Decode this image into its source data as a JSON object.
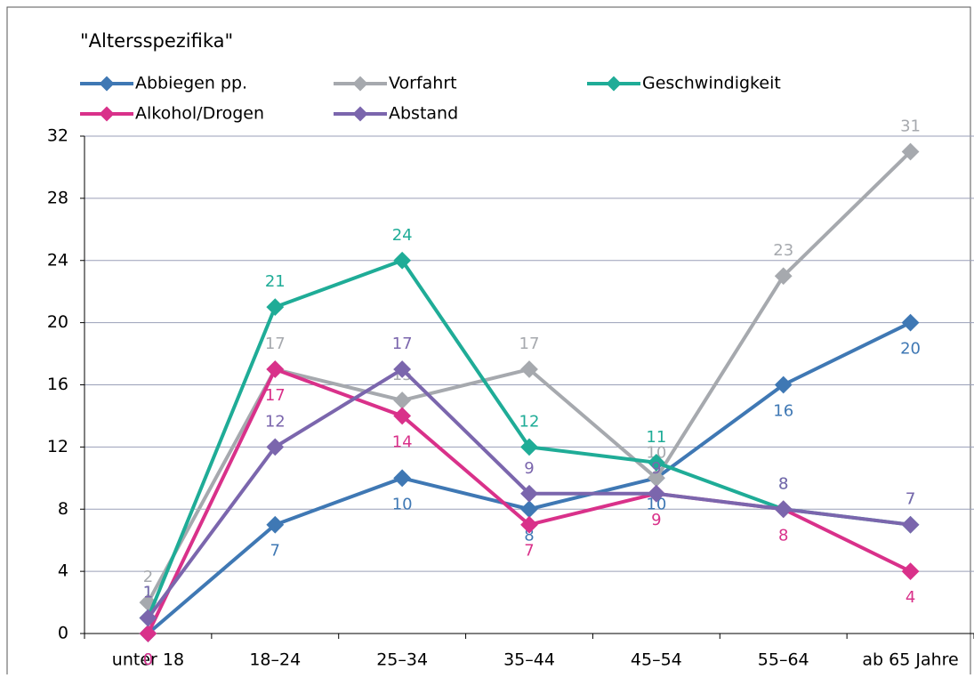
{
  "chart_data": {
    "type": "line",
    "title": "\"Altersspezifika\"",
    "categories": [
      "unter 18",
      "18–24",
      "25–34",
      "35–44",
      "45–54",
      "55–64",
      "ab 65 Jahre"
    ],
    "series": [
      {
        "name": "Abbiegen pp.",
        "color": "#3f78b4",
        "values": [
          0,
          7,
          10,
          8,
          10,
          16,
          20
        ]
      },
      {
        "name": "Vorfahrt",
        "color": "#a6a9ae",
        "values": [
          2,
          17,
          15,
          17,
          10,
          23,
          31
        ]
      },
      {
        "name": "Geschwindigkeit",
        "color": "#1fac97",
        "values": [
          1,
          21,
          24,
          12,
          11,
          8,
          7
        ]
      },
      {
        "name": "Alkohol/Drogen",
        "color": "#d9318a",
        "values": [
          0,
          17,
          14,
          7,
          9,
          8,
          4
        ]
      },
      {
        "name": "Abstand",
        "color": "#7b66ad",
        "values": [
          1,
          12,
          17,
          9,
          9,
          8,
          7
        ]
      }
    ],
    "ylim": [
      0,
      32
    ],
    "yticks": [
      0,
      4,
      8,
      12,
      16,
      20,
      24,
      28,
      32
    ],
    "grid": true
  }
}
